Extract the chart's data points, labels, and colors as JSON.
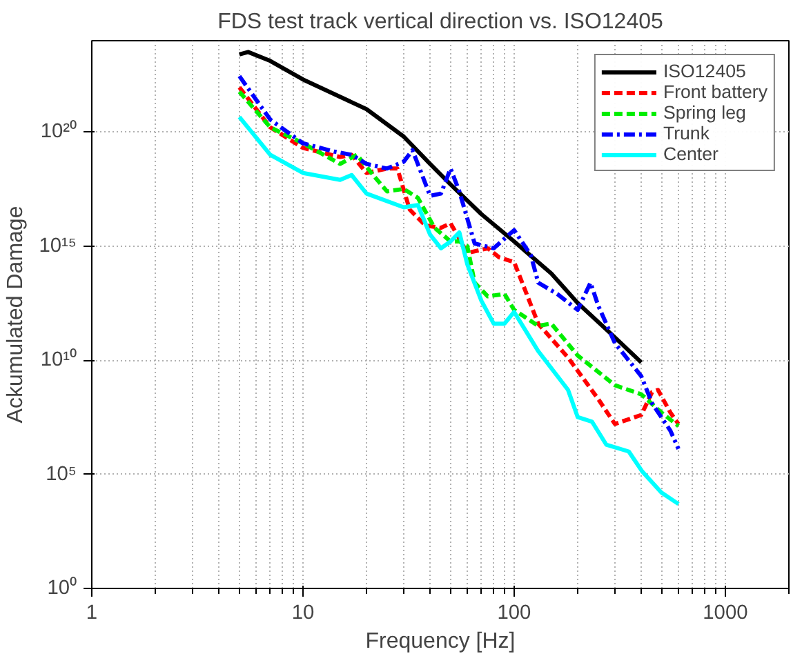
{
  "chart_data": {
    "type": "line",
    "title": "FDS test track vertical direction vs. ISO12405",
    "xlabel": "Frequency [Hz]",
    "ylabel": "Ackumulated Damage",
    "log": "xy",
    "grid": true,
    "legend": "top right",
    "xlim": [
      1,
      2000
    ],
    "ylim": [
      1,
      1e+24
    ],
    "xticks": [
      1,
      10,
      100,
      1000
    ],
    "yticks": [
      {
        "value": 1,
        "label": "10⁰"
      },
      {
        "value": 100000.0,
        "label": "10⁵"
      },
      {
        "value": 10000000000.0,
        "label": "10¹⁰"
      },
      {
        "value": 1000000000000000.0,
        "label": "10¹⁵"
      },
      {
        "value": 1e+20,
        "label": "10²⁰"
      }
    ],
    "series": [
      {
        "name": "ISO12405",
        "color": "#000000",
        "line_style": "solid",
        "x": [
          5,
          5.5,
          7,
          10,
          20,
          30,
          40,
          50,
          70,
          100,
          150,
          200,
          300,
          400
        ],
        "values": [
          2.5e+23,
          3.2e+23,
          1.3e+23,
          2e+22,
          1e+21,
          6.3e+19,
          4e+18,
          5e+17,
          2.5e+16,
          1600000000000000.0,
          63000000000000.0,
          3200000000000.0,
          100000000000.0,
          8000000000.0
        ]
      },
      {
        "name": "Front battery",
        "color": "#ff0000",
        "line_style": "dashed",
        "x": [
          5,
          7,
          10,
          15,
          17,
          20,
          25,
          28,
          32,
          38,
          45,
          50,
          60,
          75,
          85,
          100,
          130,
          180,
          250,
          300,
          400,
          450,
          480,
          550,
          600
        ],
        "values": [
          9e+21,
          1.6e+20,
          2e+19,
          8e+18,
          1e+19,
          1.6e+18,
          2.5e+18,
          2.5e+18,
          4e+16,
          8000000000000000.0,
          6300000000000000.0,
          1e+16,
          500000000000000.0,
          800000000000000.0,
          320000000000000.0,
          200000000000000.0,
          400000000000.0,
          13000000000.0,
          200000000.0,
          16000000.0,
          40000000.0,
          400000000.0,
          500000000.0,
          50000000.0,
          16000000.0
        ]
      },
      {
        "name": "Spring leg",
        "color": "#00ee00",
        "line_style": "dashed",
        "x": [
          5,
          7,
          10,
          15,
          18,
          22,
          25,
          30,
          35,
          42,
          50,
          55,
          60,
          65,
          75,
          90,
          100,
          130,
          150,
          200,
          300,
          400,
          500,
          600
        ],
        "values": [
          5.8e+21,
          1.6e+20,
          3.2e+19,
          4e+18,
          1e+19,
          1e+18,
          2.5e+17,
          3.2e+17,
          1.3e+17,
          6300000000000000.0,
          1600000000000000.0,
          1600000000000000.0,
          1000000000000000.0,
          25000000000000.0,
          6300000000000.0,
          8000000000000.0,
          1600000000000.0,
          320000000000.0,
          400000000000.0,
          16000000000.0,
          800000000.0,
          320000000.0,
          50000000.0,
          13000000.0
        ]
      },
      {
        "name": "Trunk",
        "color": "#0000ff",
        "line_style": "dashdot",
        "x": [
          5,
          7,
          10,
          14,
          17,
          20,
          25,
          30,
          33,
          40,
          45,
          50,
          55,
          65,
          80,
          100,
          120,
          130,
          160,
          200,
          230,
          250,
          300,
          400,
          450,
          550,
          600
        ],
        "values": [
          2.8e+22,
          3.5e+20,
          3.2e+19,
          1.4e+19,
          1e+19,
          4e+18,
          2.5e+18,
          5e+18,
          1.6e+19,
          1.6e+17,
          2e+17,
          2.5e+18,
          2.5e+17,
          1300000000000000.0,
          800000000000000.0,
          5000000000000000.0,
          400000000000000.0,
          25000000000000.0,
          8000000000000.0,
          1600000000000.0,
          25000000000000.0,
          2500000000000.0,
          56000000000.0,
          2000000000.0,
          130000000.0,
          8000000.0,
          1300000.0
        ]
      },
      {
        "name": "Center",
        "color": "#00ffff",
        "line_style": "solid",
        "x": [
          5,
          7,
          10,
          15,
          17,
          20,
          30,
          35,
          40,
          45,
          50,
          55,
          60,
          70,
          80,
          90,
          100,
          130,
          180,
          200,
          234,
          273,
          349,
          405,
          498,
          600
        ],
        "values": [
          4.5e+20,
          1e+19,
          1.6e+18,
          8e+17,
          1.3e+18,
          2e+17,
          5e+16,
          6.3e+16,
          3200000000000000.0,
          800000000000000.0,
          1600000000000000.0,
          4000000000000000.0,
          160000000000000.0,
          4000000000000.0,
          400000000000.0,
          400000000000.0,
          1300000000000.0,
          25000000000.0,
          500000000.0,
          32000000.0,
          20000000.0,
          2000000.0,
          1000000.0,
          130000.0,
          16000.0,
          5000.0
        ]
      }
    ]
  }
}
